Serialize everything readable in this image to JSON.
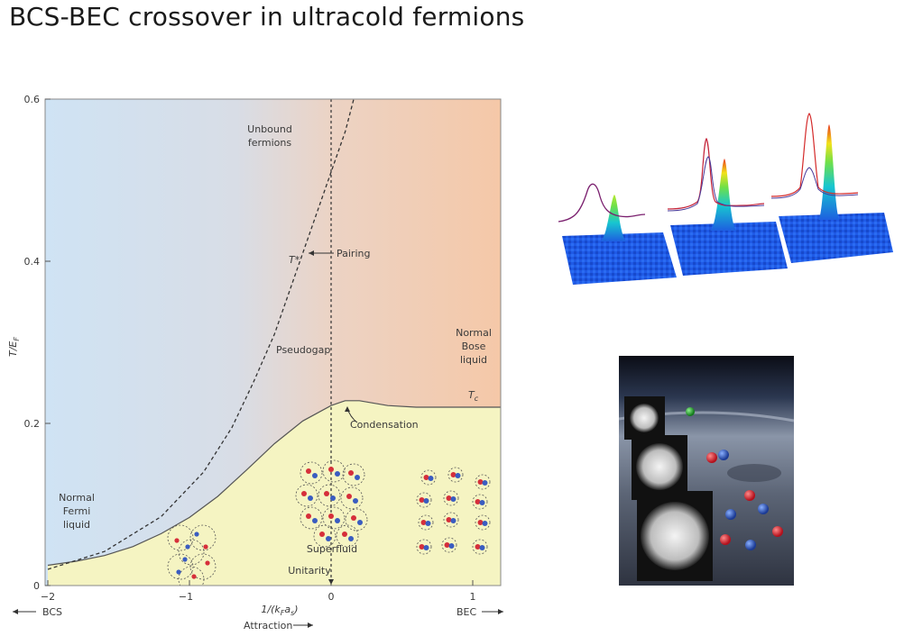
{
  "slide": {
    "title": "BCS-BEC crossover in ultracold fermions"
  },
  "chart_data": {
    "type": "phase-diagram",
    "xlim": [
      -2,
      1.2
    ],
    "ylim": [
      0,
      0.6
    ],
    "x_ticks": [
      "−2",
      "−1",
      "0",
      "1"
    ],
    "y_ticks": [
      "0",
      "0.2",
      "0.4",
      "0.6"
    ],
    "ylabel": "T/E",
    "ylabel_sub": "F",
    "xlabel": "1/(k",
    "xlabel_sub1": "F",
    "xlabel_mid": "a",
    "xlabel_sub2": "s",
    "xlabel_end": ")",
    "bottom_left_label": "BCS",
    "bottom_right_label": "BEC",
    "attraction_label": "Attraction",
    "tc_curve": [
      [
        -2,
        0.025
      ],
      [
        -1.8,
        0.03
      ],
      [
        -1.6,
        0.037
      ],
      [
        -1.4,
        0.048
      ],
      [
        -1.2,
        0.064
      ],
      [
        -1.0,
        0.084
      ],
      [
        -0.8,
        0.11
      ],
      [
        -0.6,
        0.142
      ],
      [
        -0.4,
        0.175
      ],
      [
        -0.2,
        0.203
      ],
      [
        0,
        0.222
      ],
      [
        0.1,
        0.228
      ],
      [
        0.2,
        0.228
      ],
      [
        0.4,
        0.222
      ],
      [
        0.6,
        0.22
      ],
      [
        0.8,
        0.22
      ],
      [
        1.0,
        0.22
      ],
      [
        1.2,
        0.22
      ]
    ],
    "pairing_curve": [
      [
        -2,
        0.02
      ],
      [
        -1.6,
        0.042
      ],
      [
        -1.2,
        0.085
      ],
      [
        -0.9,
        0.14
      ],
      [
        -0.7,
        0.195
      ],
      [
        -0.55,
        0.25
      ],
      [
        -0.4,
        0.31
      ],
      [
        -0.3,
        0.36
      ],
      [
        -0.2,
        0.41
      ],
      [
        -0.1,
        0.46
      ],
      [
        0,
        0.51
      ],
      [
        0.1,
        0.56
      ],
      [
        0.16,
        0.6
      ]
    ],
    "unitarity_x": 0,
    "regions": {
      "unbound": [
        "Unbound",
        "fermions"
      ],
      "pairing": "Pairing",
      "t_star": "T*",
      "pseudogap": "Pseudogap",
      "normal_bose": [
        "Normal",
        "Bose",
        "liquid"
      ],
      "tc": "T",
      "tc_sub": "c",
      "condensation": "Condensation",
      "normal_fermi": [
        "Normal",
        "Fermi",
        "liquid"
      ],
      "superfluid": "Superfluid",
      "unitarity": "Unitarity"
    },
    "colors": {
      "bcs_background": "#cfe3f4",
      "bec_background": "#f5c8a8",
      "superfluid_fill": "#f5f4c2",
      "curve": "#444444",
      "spin_up": "#d62f3a",
      "spin_down": "#3a5cc0"
    }
  },
  "panels": {
    "absorption_images": "time-of-flight density distributions (three bimodal peaks)",
    "vortex_lattice": "vortex lattice images with paired atoms"
  }
}
